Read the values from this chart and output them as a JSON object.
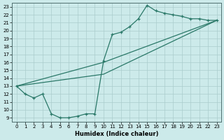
{
  "xlabel": "Humidex (Indice chaleur)",
  "bg_color": "#cceaea",
  "grid_color": "#aacccc",
  "line_color": "#2a7868",
  "xlim": [
    -0.5,
    23.5
  ],
  "ylim": [
    8.5,
    23.5
  ],
  "xticks": [
    0,
    1,
    2,
    3,
    4,
    5,
    6,
    7,
    8,
    9,
    10,
    11,
    12,
    13,
    14,
    15,
    16,
    17,
    18,
    19,
    20,
    21,
    22,
    23
  ],
  "yticks": [
    9,
    10,
    11,
    12,
    13,
    14,
    15,
    16,
    17,
    18,
    19,
    20,
    21,
    22,
    23
  ],
  "curve_x": [
    0,
    1,
    2,
    3,
    4,
    5,
    6,
    7,
    8,
    9,
    10,
    11,
    12,
    13,
    14,
    15,
    16,
    17,
    18,
    19,
    20,
    21,
    22,
    23
  ],
  "curve_y": [
    13.0,
    12.0,
    11.5,
    12.0,
    9.5,
    9.0,
    9.0,
    9.2,
    9.5,
    9.5,
    16.2,
    19.5,
    19.8,
    20.5,
    21.5,
    23.2,
    22.5,
    22.2,
    22.0,
    21.8,
    21.5,
    21.5,
    21.3,
    21.3
  ],
  "line1_x": [
    0,
    10,
    23
  ],
  "line1_y": [
    13.0,
    16.0,
    21.3
  ],
  "line2_x": [
    0,
    10,
    23
  ],
  "line2_y": [
    13.0,
    14.5,
    21.3
  ]
}
